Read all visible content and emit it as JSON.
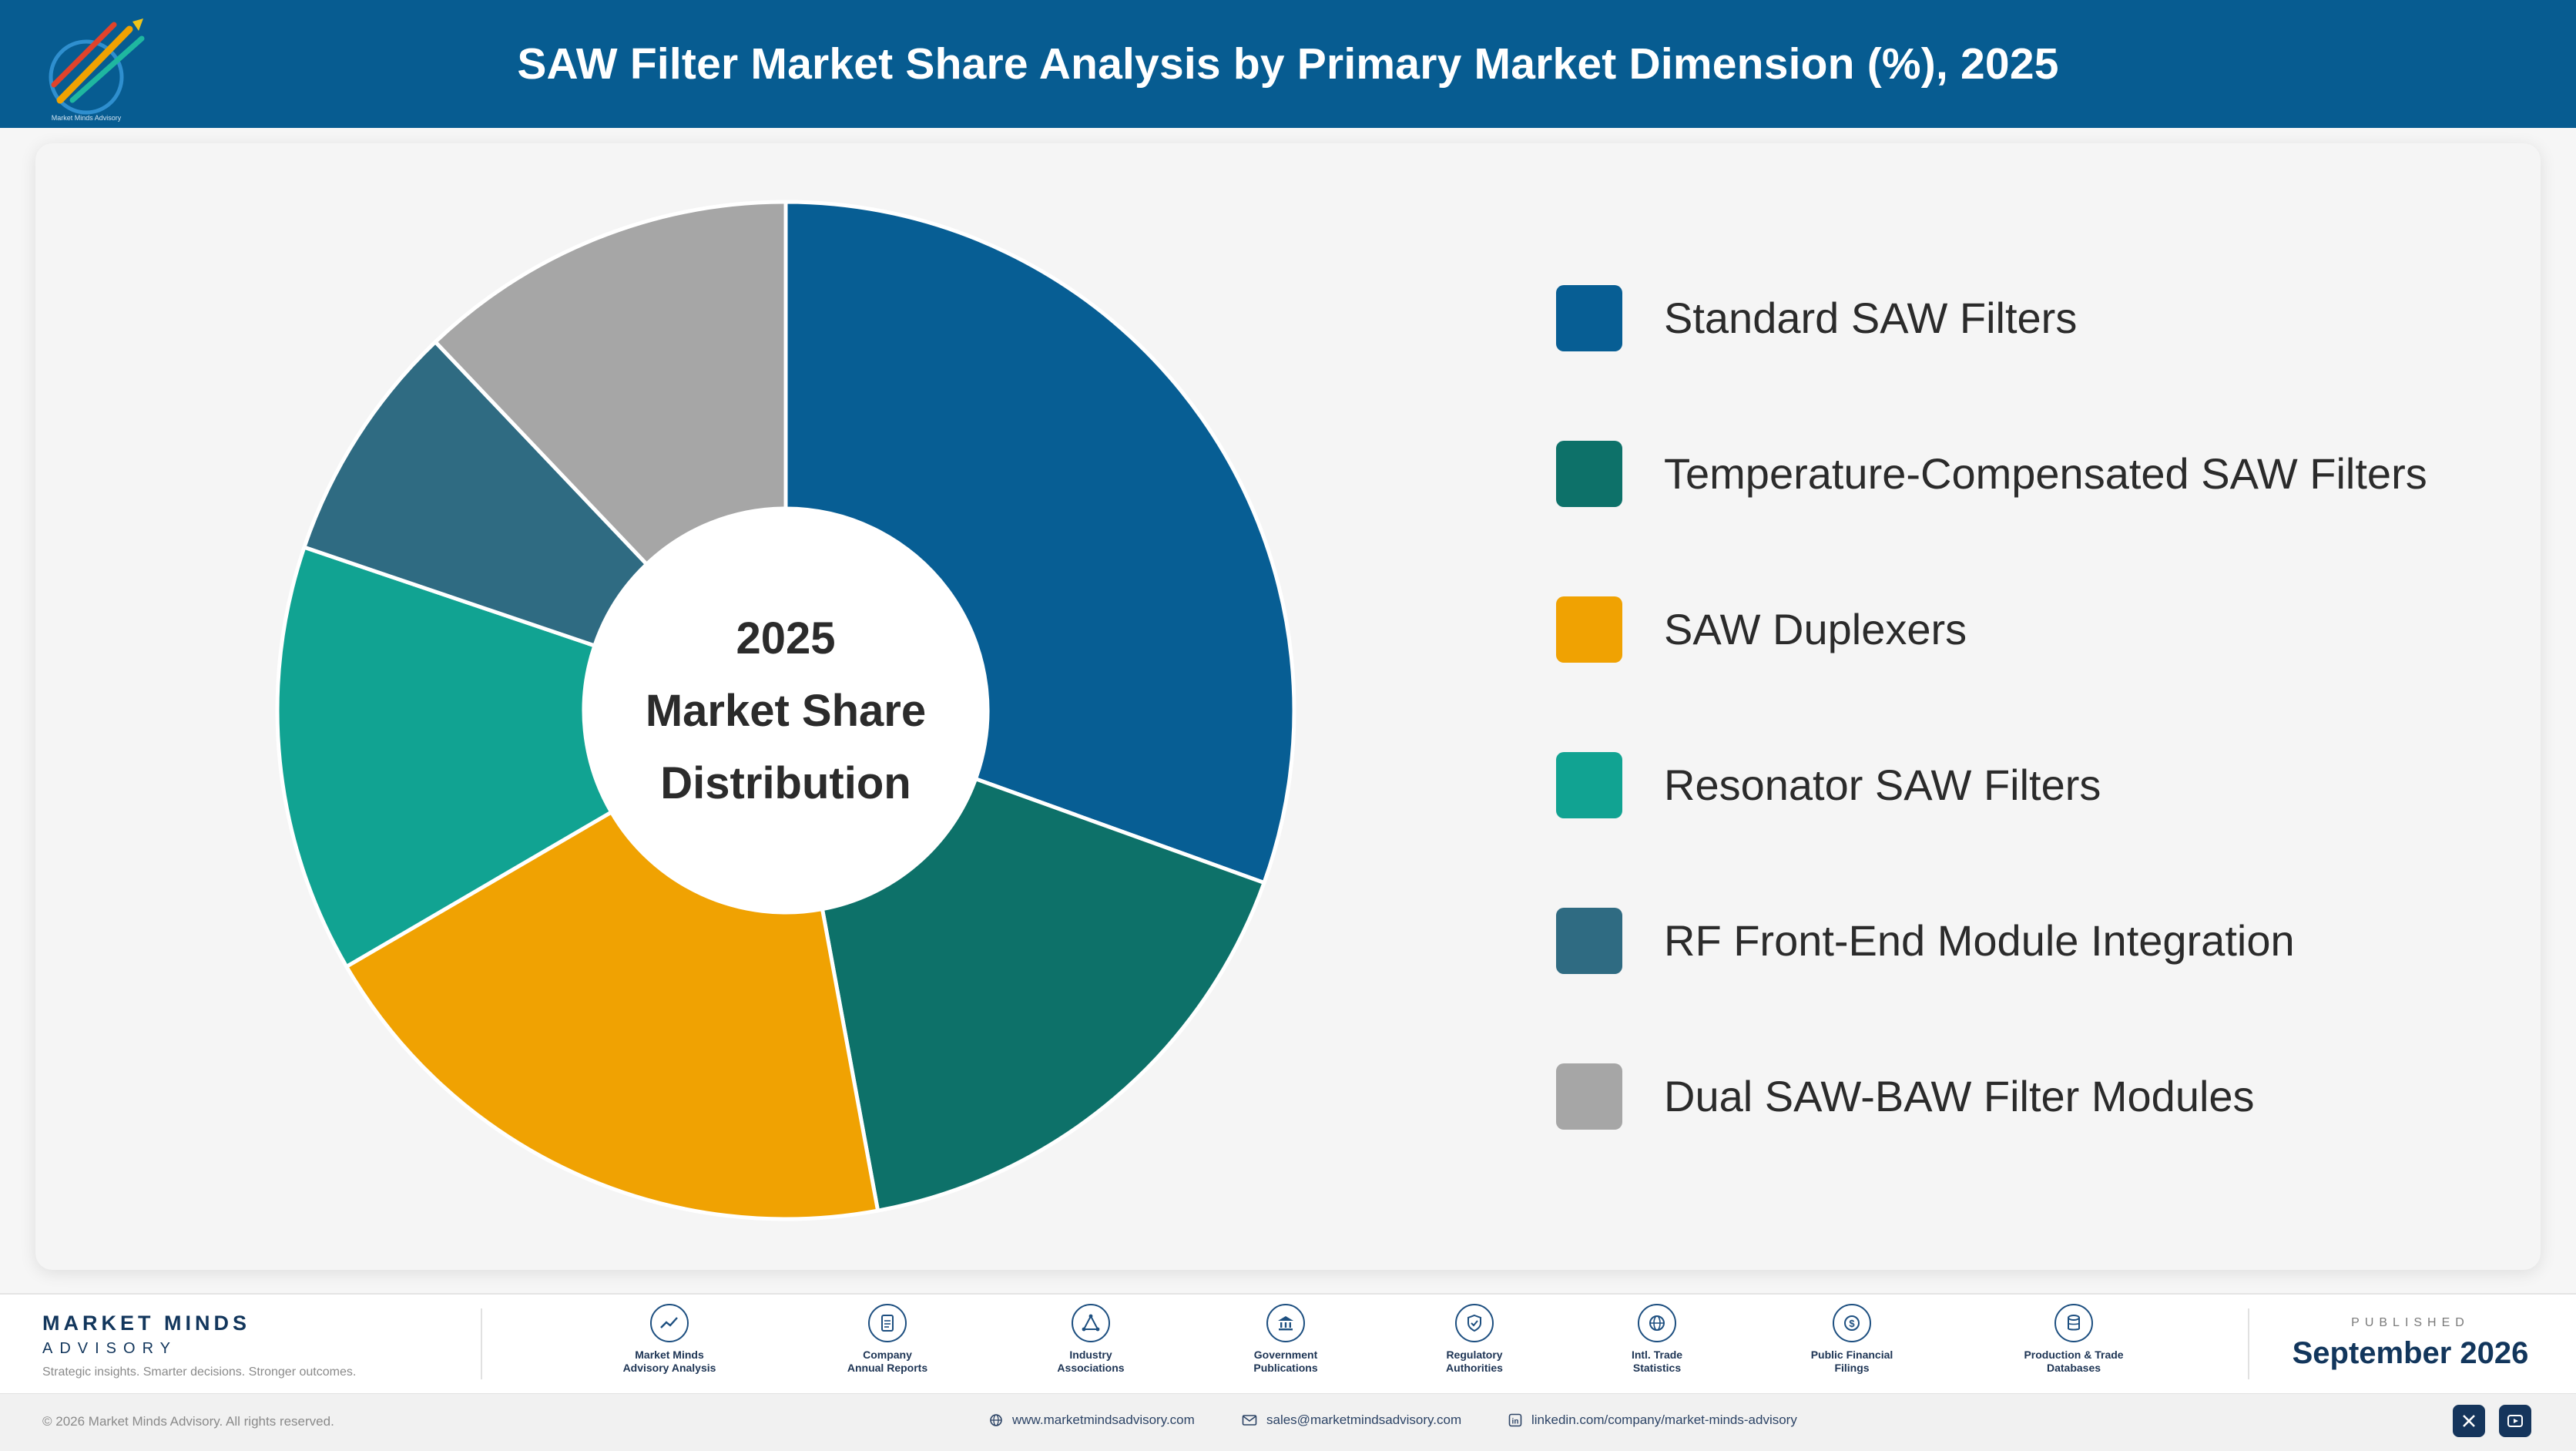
{
  "header": {
    "title": "SAW Filter Market Share Analysis by Primary Market Dimension (%), 2025",
    "logo_icon": "rocket-arrows-logo-icon"
  },
  "chart_data": {
    "type": "pie",
    "donut_center_lines": [
      "2025",
      "Market Share",
      "Distribution"
    ],
    "categories": [
      "Standard SAW Filters",
      "Temperature-Compensated SAW Filters",
      "SAW Duplexers",
      "Resonator SAW Filters",
      "RF Front-End Module Integration",
      "Dual SAW-BAW Filter Modules"
    ],
    "values": [
      30.5,
      16.6,
      19.5,
      13.6,
      7.7,
      12.1
    ],
    "colors": [
      "#075e94",
      "#0d7169",
      "#f0a202",
      "#11a392",
      "#2f6b82",
      "#a6a6a6"
    ],
    "legend_position": "right"
  },
  "footer": {
    "brand_name": "MARKET MINDS",
    "brand_sub": "ADVISORY",
    "tagline": "Strategic insights. Smarter decisions. Stronger outcomes.",
    "sources": [
      {
        "label": "Market Minds\nAdvisory Analysis",
        "icon": "trend-chart-icon"
      },
      {
        "label": "Company\nAnnual Reports",
        "icon": "document-icon"
      },
      {
        "label": "Industry\nAssociations",
        "icon": "network-icon"
      },
      {
        "label": "Government\nPublications",
        "icon": "government-building-icon"
      },
      {
        "label": "Regulatory\nAuthorities",
        "icon": "shield-check-icon"
      },
      {
        "label": "Intl. Trade\nStatistics",
        "icon": "globe-icon"
      },
      {
        "label": "Public Financial\nFilings",
        "icon": "dollar-coin-icon"
      },
      {
        "label": "Production & Trade\nDatabases",
        "icon": "database-icon"
      }
    ],
    "published_label": "PUBLISHED",
    "published_date": "September 2026"
  },
  "bottom_bar": {
    "copyright": "© 2026 Market Minds Advisory. All rights reserved.",
    "website": "www.marketmindsadvisory.com",
    "email": "sales@marketmindsadvisory.com",
    "linkedin": "linkedin.com/company/market-minds-advisory",
    "social_icons": [
      "x-icon",
      "youtube-icon"
    ]
  }
}
